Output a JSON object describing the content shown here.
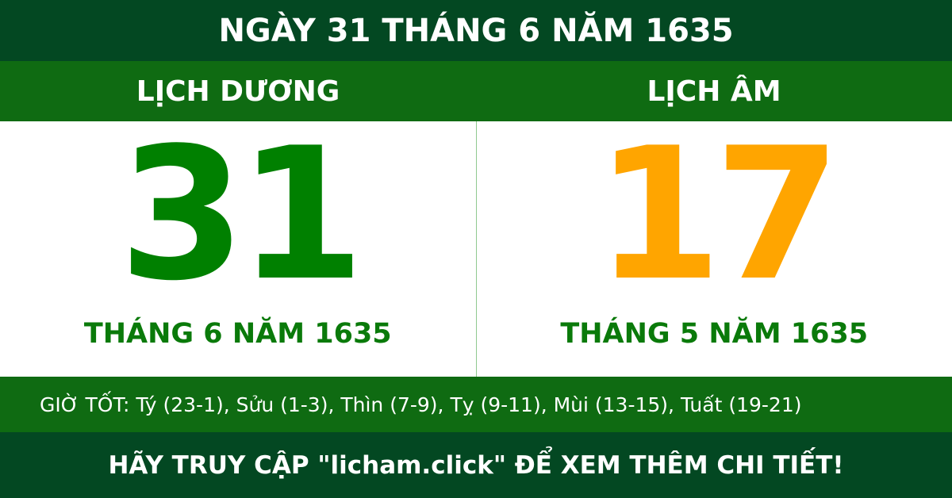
{
  "title": "NGÀY 31 THÁNG 6 NĂM 1635",
  "solar": {
    "label": "LỊCH DƯƠNG",
    "day": "31",
    "month_year": "THÁNG 6 NĂM 1635"
  },
  "lunar": {
    "label": "LỊCH ÂM",
    "day": "17",
    "month_year": "THÁNG 5 NĂM 1635"
  },
  "good_hours": "GIỜ TỐT: Tý (23-1), Sửu (1-3), Thìn (7-9), Tỵ (9-11), Mùi (13-15), Tuất (19-21)",
  "footer": "HÃY TRUY CẬP \"licham.click\" ĐỂ XEM THÊM CHI TIẾT!",
  "colors": {
    "dark_green": "#034822",
    "green_band": "#0f6b12",
    "solar_color": "#008000",
    "lunar_color": "#ffa500"
  }
}
